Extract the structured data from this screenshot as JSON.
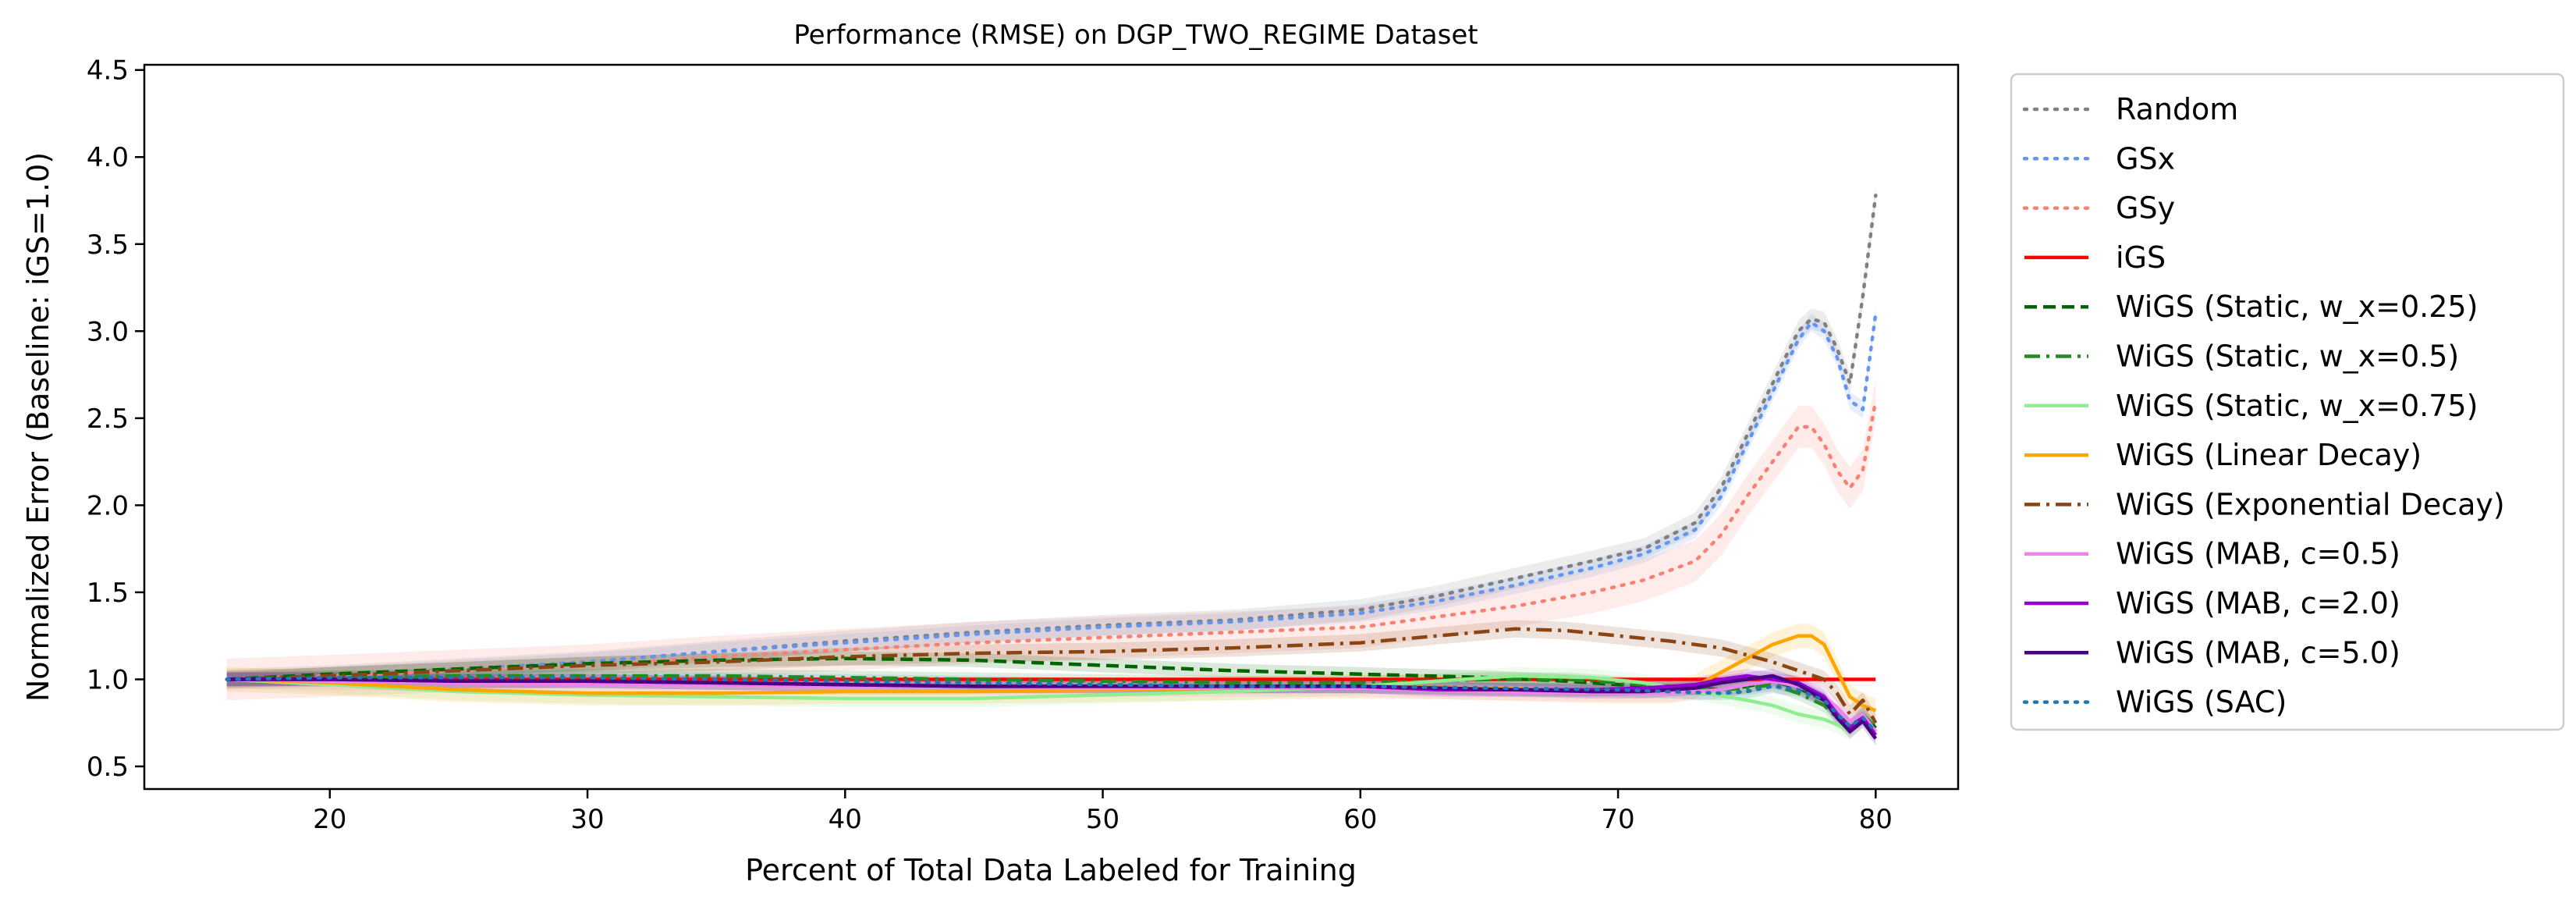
{
  "chart_data": {
    "type": "line",
    "title": "Performance (RMSE) on DGP_TWO_REGIME Dataset",
    "xlabel": "Percent of Total Data Labeled for Training",
    "ylabel": "Normalized Error (Baseline: iGS=1.0)",
    "xlim": [
      12.8,
      83.2
    ],
    "ylim": [
      0.37,
      4.53
    ],
    "xticks": [
      20,
      30,
      40,
      50,
      60,
      70,
      80
    ],
    "yticks": [
      0.5,
      1.0,
      1.5,
      2.0,
      2.5,
      3.0,
      3.5,
      4.0,
      4.5
    ],
    "xtick_labels": [
      "20",
      "30",
      "40",
      "50",
      "60",
      "70",
      "80"
    ],
    "ytick_labels": [
      "0.5",
      "1.0",
      "1.5",
      "2.0",
      "2.5",
      "3.0",
      "3.5",
      "4.0",
      "4.5"
    ],
    "legend_position": "outside right",
    "grid": false,
    "series": [
      {
        "name": "Random",
        "color": "#808080",
        "dash": "dotted",
        "x": [
          16,
          20,
          25,
          30,
          35,
          40,
          45,
          50,
          55,
          60,
          63,
          66,
          69,
          71,
          73,
          74,
          75,
          76,
          77,
          77.5,
          78,
          78.5,
          79,
          79.5,
          80
        ],
        "y": [
          1.0,
          1.02,
          1.06,
          1.1,
          1.16,
          1.22,
          1.27,
          1.31,
          1.34,
          1.4,
          1.48,
          1.58,
          1.68,
          1.75,
          1.9,
          2.1,
          2.4,
          2.7,
          3.0,
          3.07,
          3.05,
          2.9,
          2.7,
          3.2,
          3.78
        ],
        "band": 0.06
      },
      {
        "name": "GSx",
        "color": "#6495ED",
        "dash": "dotted",
        "x": [
          16,
          20,
          25,
          30,
          35,
          40,
          45,
          50,
          55,
          60,
          63,
          66,
          69,
          71,
          73,
          74,
          75,
          76,
          77,
          77.5,
          78,
          78.5,
          79,
          79.5,
          80
        ],
        "y": [
          1.0,
          1.02,
          1.06,
          1.1,
          1.16,
          1.21,
          1.26,
          1.3,
          1.33,
          1.38,
          1.45,
          1.54,
          1.64,
          1.72,
          1.86,
          2.05,
          2.35,
          2.65,
          2.95,
          3.05,
          3.0,
          2.85,
          2.6,
          2.55,
          3.1
        ],
        "band": 0.05
      },
      {
        "name": "GSy",
        "color": "#FA8072",
        "dash": "dotted",
        "x": [
          16,
          20,
          25,
          30,
          35,
          40,
          45,
          50,
          55,
          60,
          63,
          66,
          69,
          71,
          73,
          74,
          75,
          76,
          77,
          77.5,
          78,
          78.5,
          79,
          79.5,
          80
        ],
        "y": [
          1.0,
          1.02,
          1.05,
          1.08,
          1.13,
          1.17,
          1.21,
          1.24,
          1.27,
          1.3,
          1.36,
          1.42,
          1.5,
          1.57,
          1.68,
          1.83,
          2.05,
          2.25,
          2.45,
          2.45,
          2.35,
          2.2,
          2.1,
          2.2,
          2.6
        ],
        "band": 0.12
      },
      {
        "name": "iGS",
        "color": "#FF0000",
        "dash": "solid",
        "x": [
          16,
          80
        ],
        "y": [
          1.0,
          1.0
        ],
        "band": 0
      },
      {
        "name": "WiGS (Static, w_x=0.25)",
        "color": "#006400",
        "dash": "dashed",
        "x": [
          16,
          20,
          25,
          30,
          35,
          40,
          45,
          50,
          55,
          60,
          65,
          68,
          70,
          72,
          74,
          75,
          76,
          77,
          78,
          78.5,
          79,
          79.5,
          80
        ],
        "y": [
          1.0,
          1.03,
          1.06,
          1.09,
          1.11,
          1.12,
          1.11,
          1.08,
          1.05,
          1.03,
          1.01,
          0.99,
          0.97,
          0.96,
          0.94,
          0.96,
          0.99,
          0.95,
          0.88,
          0.8,
          0.73,
          0.8,
          0.72
        ],
        "band": 0.04
      },
      {
        "name": "WiGS (Static, w_x=0.5)",
        "color": "#228B22",
        "dash": "dashdot",
        "x": [
          16,
          20,
          25,
          30,
          35,
          40,
          45,
          50,
          55,
          60,
          65,
          68,
          70,
          72,
          74,
          75,
          76,
          77,
          78,
          78.5,
          79,
          79.5,
          80
        ],
        "y": [
          1.0,
          1.01,
          1.02,
          1.02,
          1.02,
          1.01,
          1.0,
          0.99,
          0.98,
          0.98,
          1.0,
          1.0,
          0.98,
          0.96,
          0.94,
          0.95,
          0.97,
          0.92,
          0.85,
          0.78,
          0.72,
          0.8,
          0.72
        ],
        "band": 0.04
      },
      {
        "name": "WiGS (Static, w_x=0.75)",
        "color": "#90EE90",
        "dash": "solid",
        "x": [
          16,
          20,
          25,
          30,
          35,
          40,
          45,
          50,
          55,
          60,
          63,
          66,
          69,
          71,
          73,
          75,
          76,
          77,
          78,
          78.5,
          79,
          79.5,
          80
        ],
        "y": [
          1.0,
          0.97,
          0.93,
          0.91,
          0.9,
          0.89,
          0.89,
          0.91,
          0.93,
          0.96,
          0.99,
          1.02,
          1.01,
          0.98,
          0.93,
          0.88,
          0.85,
          0.8,
          0.77,
          0.74,
          0.7,
          0.78,
          0.7
        ],
        "band": 0.05
      },
      {
        "name": "WiGS (Linear Decay)",
        "color": "#FFA500",
        "dash": "solid",
        "x": [
          16,
          20,
          25,
          30,
          35,
          40,
          45,
          50,
          55,
          60,
          65,
          70,
          72,
          73,
          74,
          75,
          76,
          77,
          77.5,
          78,
          78.5,
          79,
          79.5,
          80
        ],
        "y": [
          1.0,
          0.98,
          0.94,
          0.92,
          0.92,
          0.93,
          0.93,
          0.94,
          0.95,
          0.96,
          0.95,
          0.93,
          0.93,
          0.96,
          1.04,
          1.12,
          1.2,
          1.25,
          1.25,
          1.2,
          1.05,
          0.9,
          0.85,
          0.82
        ],
        "band": 0.07
      },
      {
        "name": "WiGS (Exponential Decay)",
        "color": "#8B4513",
        "dash": "dashdot",
        "x": [
          16,
          20,
          25,
          30,
          35,
          40,
          45,
          50,
          55,
          60,
          63,
          66,
          68,
          70,
          72,
          74,
          75,
          76,
          77,
          78,
          78.5,
          79,
          79.5,
          80
        ],
        "y": [
          1.0,
          1.02,
          1.05,
          1.08,
          1.1,
          1.13,
          1.15,
          1.16,
          1.18,
          1.21,
          1.25,
          1.29,
          1.28,
          1.25,
          1.22,
          1.18,
          1.14,
          1.1,
          1.05,
          1.0,
          0.92,
          0.8,
          0.88,
          0.75
        ],
        "band": 0.05
      },
      {
        "name": "WiGS (MAB, c=0.5)",
        "color": "#EE82EE",
        "dash": "solid",
        "x": [
          16,
          20,
          25,
          30,
          35,
          40,
          45,
          50,
          55,
          60,
          65,
          70,
          72,
          74,
          75,
          76,
          77,
          78,
          78.5,
          79,
          79.5,
          80
        ],
        "y": [
          1.0,
          0.99,
          0.98,
          0.97,
          0.97,
          0.96,
          0.96,
          0.95,
          0.95,
          0.95,
          0.93,
          0.92,
          0.92,
          0.94,
          0.97,
          0.99,
          0.96,
          0.9,
          0.84,
          0.76,
          0.8,
          0.7
        ],
        "band": 0.05
      },
      {
        "name": "WiGS (MAB, c=2.0)",
        "color": "#9400D3",
        "dash": "solid",
        "x": [
          16,
          20,
          25,
          30,
          35,
          40,
          45,
          50,
          55,
          60,
          63,
          66,
          69,
          71,
          73,
          74,
          75,
          76,
          77,
          78,
          78.5,
          79,
          79.5,
          80
        ],
        "y": [
          1.0,
          1.0,
          0.99,
          0.99,
          0.98,
          0.97,
          0.96,
          0.96,
          0.96,
          0.96,
          0.94,
          0.94,
          0.94,
          0.95,
          0.97,
          1.0,
          1.02,
          1.0,
          0.98,
          0.9,
          0.8,
          0.72,
          0.78,
          0.68
        ],
        "band": 0.04
      },
      {
        "name": "WiGS (MAB, c=5.0)",
        "color": "#4B0082",
        "dash": "solid",
        "x": [
          16,
          20,
          25,
          30,
          35,
          40,
          45,
          50,
          55,
          60,
          63,
          66,
          69,
          71,
          73,
          74,
          75,
          76,
          77,
          78,
          78.5,
          79,
          79.5,
          80
        ],
        "y": [
          1.0,
          1.0,
          0.99,
          0.99,
          0.98,
          0.97,
          0.96,
          0.96,
          0.96,
          0.96,
          0.95,
          0.94,
          0.93,
          0.93,
          0.95,
          0.98,
          1.0,
          1.02,
          0.97,
          0.88,
          0.78,
          0.7,
          0.76,
          0.66
        ],
        "band": 0.04
      },
      {
        "name": "WiGS (SAC)",
        "color": "#1F77B4",
        "dash": "dotted",
        "x": [
          16,
          20,
          25,
          30,
          35,
          40,
          45,
          50,
          55,
          60,
          65,
          70,
          72,
          74,
          75,
          76,
          77,
          78,
          78.5,
          79,
          79.5,
          80
        ],
        "y": [
          1.0,
          1.01,
          1.01,
          1.01,
          1.0,
          0.99,
          0.98,
          0.97,
          0.96,
          0.96,
          0.95,
          0.94,
          0.93,
          0.92,
          0.93,
          0.96,
          0.94,
          0.88,
          0.8,
          0.73,
          0.78,
          0.7
        ],
        "band": 0.04
      }
    ]
  }
}
